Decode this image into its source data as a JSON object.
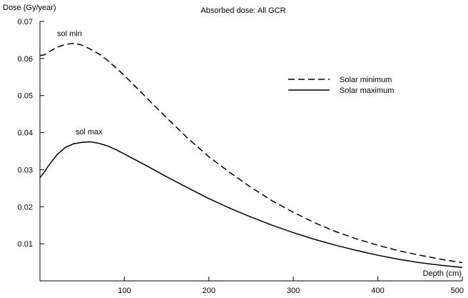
{
  "chart_data": {
    "type": "line",
    "title": "Absorbed dose: All GCR",
    "xlabel": "Depth (cm)",
    "ylabel": "Dose (Gy/year)",
    "xlim": [
      0,
      500
    ],
    "ylim": [
      0,
      0.07
    ],
    "x_ticks": [
      100,
      200,
      300,
      400,
      500
    ],
    "x_tick_labels": [
      "100",
      "200",
      "300",
      "400",
      "500"
    ],
    "y_ticks": [
      0.01,
      0.02,
      0.03,
      0.04,
      0.05,
      0.06,
      0.07
    ],
    "y_tick_labels": [
      "0.01",
      "0.02",
      "0.03",
      "0.04",
      "0.05",
      "0.06",
      "0.07"
    ],
    "grid": false,
    "legend_position": "top-right",
    "annotations": [
      {
        "text": "sol min",
        "x": 35,
        "y": 0.066
      },
      {
        "text": "sol max",
        "x": 58,
        "y": 0.0395
      }
    ],
    "series": [
      {
        "name": "Solar minimum",
        "line_style": "dashed",
        "color": "#000000",
        "x": [
          0,
          5,
          10,
          20,
          30,
          40,
          50,
          60,
          70,
          80,
          90,
          100,
          125,
          150,
          175,
          200,
          225,
          250,
          275,
          300,
          325,
          350,
          375,
          400,
          425,
          450,
          475,
          500
        ],
        "y": [
          0.0608,
          0.061,
          0.0617,
          0.063,
          0.0638,
          0.0641,
          0.0636,
          0.0625,
          0.0612,
          0.0595,
          0.0575,
          0.0554,
          0.0497,
          0.044,
          0.0385,
          0.0335,
          0.0292,
          0.0252,
          0.0216,
          0.0185,
          0.0157,
          0.0133,
          0.0113,
          0.0096,
          0.0081,
          0.0069,
          0.0058,
          0.0049
        ]
      },
      {
        "name": "Solar maximum",
        "line_style": "solid",
        "color": "#000000",
        "x": [
          0,
          5,
          10,
          20,
          30,
          40,
          50,
          60,
          70,
          80,
          90,
          100,
          125,
          150,
          175,
          200,
          225,
          250,
          275,
          300,
          325,
          350,
          375,
          400,
          425,
          450,
          475,
          500
        ],
        "y": [
          0.0278,
          0.0293,
          0.031,
          0.034,
          0.036,
          0.037,
          0.0374,
          0.0375,
          0.0371,
          0.0364,
          0.0354,
          0.0342,
          0.0312,
          0.0281,
          0.0251,
          0.0222,
          0.0196,
          0.0172,
          0.015,
          0.013,
          0.0112,
          0.0096,
          0.0082,
          0.0069,
          0.0058,
          0.0049,
          0.0042,
          0.0036
        ]
      }
    ]
  }
}
